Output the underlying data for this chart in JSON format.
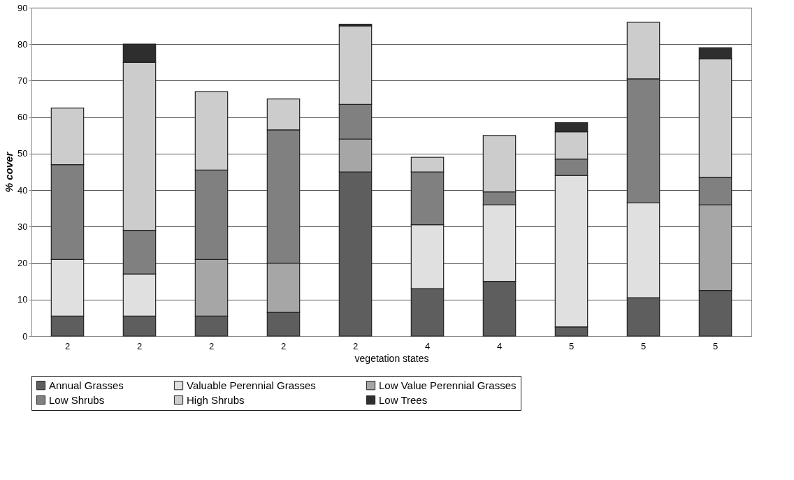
{
  "chart_data": {
    "type": "bar",
    "stacked": true,
    "xlabel": "vegetation states",
    "ylabel": "% cover",
    "categories": [
      "2",
      "2",
      "2",
      "2",
      "2",
      "4",
      "4",
      "5",
      "5",
      "5"
    ],
    "series": [
      {
        "name": "Annual Grasses",
        "color": "#5e5e5e",
        "values": [
          5.5,
          5.5,
          5.5,
          6.5,
          45,
          13,
          15,
          2.5,
          10.5,
          12.5
        ]
      },
      {
        "name": "Valuable Perennial Grasses",
        "color": "#e0e0e0",
        "values": [
          15.5,
          11.5,
          null,
          null,
          null,
          17.5,
          21,
          41.5,
          26,
          null
        ]
      },
      {
        "name": "Low Value Perennial Grasses",
        "color": "#a6a6a6",
        "values": [
          null,
          null,
          15.5,
          13.5,
          9,
          null,
          null,
          null,
          null,
          23.5
        ]
      },
      {
        "name": "Low Shrubs",
        "color": "#808080",
        "values": [
          26,
          12,
          24.5,
          36.5,
          9.5,
          14.5,
          3.5,
          4.5,
          34,
          7.5
        ]
      },
      {
        "name": "High Shrubs",
        "color": "#cccccc",
        "values": [
          15.5,
          46,
          21.5,
          8.5,
          21.5,
          4,
          15.5,
          7.5,
          15.5,
          32.5
        ]
      },
      {
        "name": "Low Trees",
        "color": "#2e2e2e",
        "values": [
          null,
          5,
          null,
          null,
          0.5,
          null,
          null,
          2.5,
          null,
          3
        ]
      }
    ],
    "ylim": [
      0,
      90
    ],
    "yticks": [
      0,
      10,
      20,
      30,
      40,
      50,
      60,
      70,
      80,
      90
    ],
    "grid": "y",
    "legend": "bottom"
  }
}
